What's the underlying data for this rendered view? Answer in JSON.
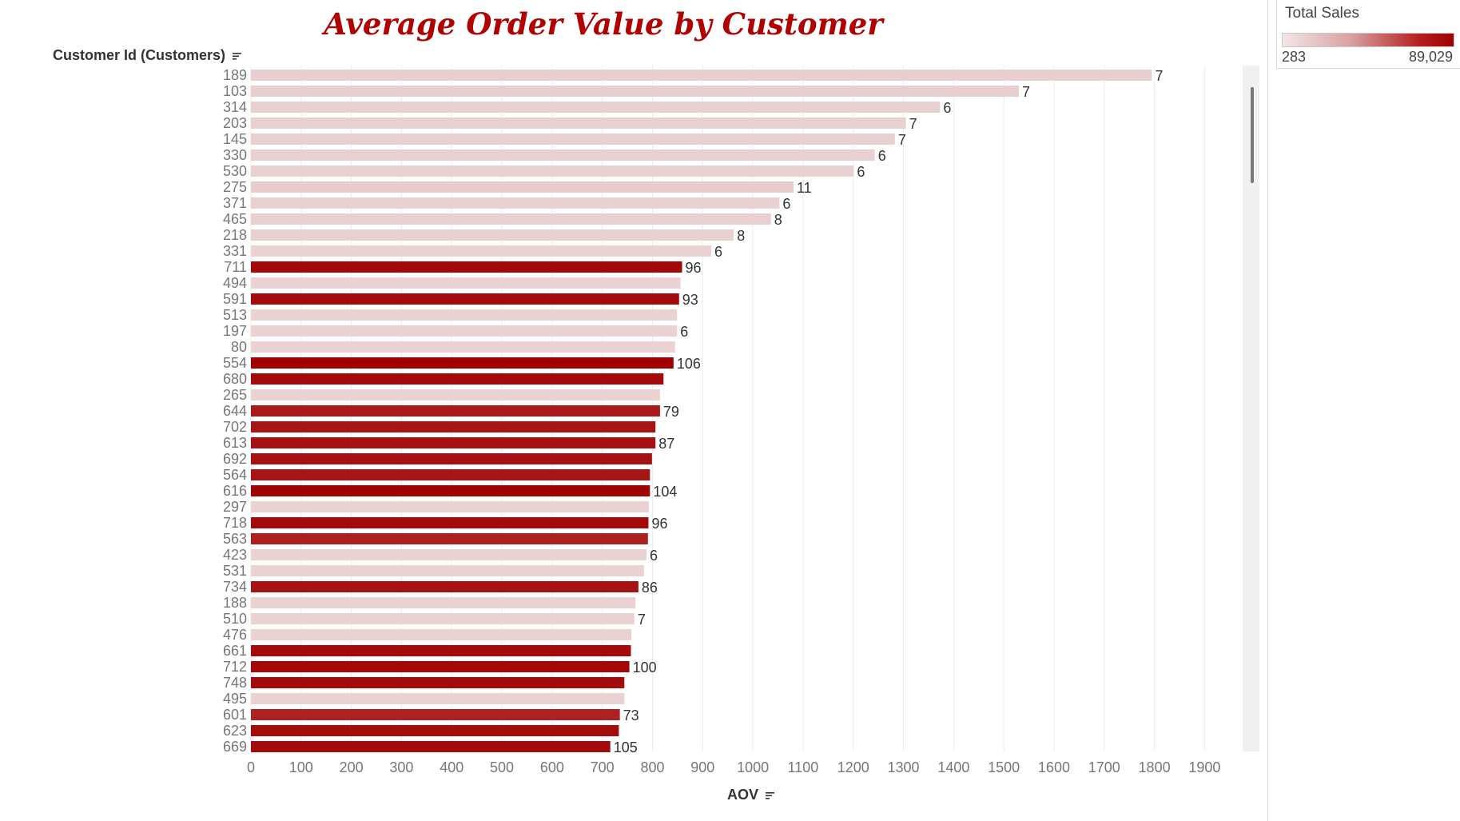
{
  "chart_data": {
    "type": "bar",
    "orientation": "horizontal",
    "title": "Average Order Value by Customer",
    "ylabel": "Customer Id (Customers)",
    "xlabel": "AOV",
    "xlim": [
      0,
      1950
    ],
    "xticks": [
      0,
      100,
      200,
      300,
      400,
      500,
      600,
      700,
      800,
      900,
      1000,
      1100,
      1200,
      1300,
      1400,
      1500,
      1600,
      1700,
      1800,
      1900
    ],
    "grid": "vertical",
    "colors": {
      "low": "#f2e6e6",
      "high": "#a00000"
    },
    "color_legend": {
      "title": "Total Sales",
      "min": "283",
      "max": "89,029",
      "placement": "top-right"
    },
    "bars": [
      {
        "category": "189",
        "value": 1795,
        "label": "7",
        "intensity": 0.07
      },
      {
        "category": "103",
        "value": 1530,
        "label": "7",
        "intensity": 0.06
      },
      {
        "category": "314",
        "value": 1373,
        "label": "6",
        "intensity": 0.05
      },
      {
        "category": "203",
        "value": 1305,
        "label": "7",
        "intensity": 0.05
      },
      {
        "category": "145",
        "value": 1283,
        "label": "7",
        "intensity": 0.05
      },
      {
        "category": "330",
        "value": 1243,
        "label": "6",
        "intensity": 0.05
      },
      {
        "category": "530",
        "value": 1201,
        "label": "6",
        "intensity": 0.04
      },
      {
        "category": "275",
        "value": 1081,
        "label": "11",
        "intensity": 0.08
      },
      {
        "category": "371",
        "value": 1053,
        "label": "6",
        "intensity": 0.04
      },
      {
        "category": "465",
        "value": 1036,
        "label": "8",
        "intensity": 0.05
      },
      {
        "category": "218",
        "value": 962,
        "label": "8",
        "intensity": 0.05
      },
      {
        "category": "331",
        "value": 917,
        "label": "6",
        "intensity": 0.03
      },
      {
        "category": "711",
        "value": 859,
        "label": "96",
        "intensity": 0.93
      },
      {
        "category": "494",
        "value": 856,
        "label": "",
        "intensity": 0.03
      },
      {
        "category": "591",
        "value": 853,
        "label": "93",
        "intensity": 0.9
      },
      {
        "category": "513",
        "value": 849,
        "label": "",
        "intensity": 0.03
      },
      {
        "category": "197",
        "value": 849,
        "label": "6",
        "intensity": 0.03
      },
      {
        "category": "80",
        "value": 845,
        "label": "",
        "intensity": 0.03
      },
      {
        "category": "554",
        "value": 842,
        "label": "106",
        "intensity": 1.0
      },
      {
        "category": "680",
        "value": 822,
        "label": "",
        "intensity": 0.9
      },
      {
        "category": "265",
        "value": 815,
        "label": "",
        "intensity": 0.03
      },
      {
        "category": "644",
        "value": 815,
        "label": "79",
        "intensity": 0.76
      },
      {
        "category": "702",
        "value": 806,
        "label": "",
        "intensity": 0.8
      },
      {
        "category": "613",
        "value": 806,
        "label": "87",
        "intensity": 0.84
      },
      {
        "category": "692",
        "value": 799,
        "label": "",
        "intensity": 0.83
      },
      {
        "category": "564",
        "value": 795,
        "label": "",
        "intensity": 0.8
      },
      {
        "category": "616",
        "value": 795,
        "label": "104",
        "intensity": 0.97
      },
      {
        "category": "297",
        "value": 793,
        "label": "",
        "intensity": 0.03
      },
      {
        "category": "718",
        "value": 792,
        "label": "96",
        "intensity": 0.9
      },
      {
        "category": "563",
        "value": 791,
        "label": "",
        "intensity": 0.7
      },
      {
        "category": "423",
        "value": 788,
        "label": "6",
        "intensity": 0.03
      },
      {
        "category": "531",
        "value": 783,
        "label": "",
        "intensity": 0.03
      },
      {
        "category": "734",
        "value": 772,
        "label": "86",
        "intensity": 0.82
      },
      {
        "category": "188",
        "value": 766,
        "label": "",
        "intensity": 0.03
      },
      {
        "category": "510",
        "value": 764,
        "label": "7",
        "intensity": 0.03
      },
      {
        "category": "476",
        "value": 758,
        "label": "",
        "intensity": 0.03
      },
      {
        "category": "661",
        "value": 757,
        "label": "",
        "intensity": 0.9
      },
      {
        "category": "712",
        "value": 754,
        "label": "100",
        "intensity": 0.93
      },
      {
        "category": "748",
        "value": 744,
        "label": "",
        "intensity": 0.88
      },
      {
        "category": "495",
        "value": 744,
        "label": "",
        "intensity": 0.03
      },
      {
        "category": "601",
        "value": 735,
        "label": "73",
        "intensity": 0.68
      },
      {
        "category": "623",
        "value": 733,
        "label": "",
        "intensity": 0.87
      },
      {
        "category": "669",
        "value": 716,
        "label": "105",
        "intensity": 0.9
      }
    ]
  }
}
